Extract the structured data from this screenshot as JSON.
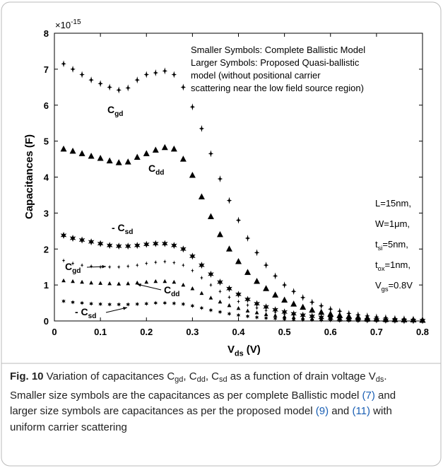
{
  "chart_data": {
    "type": "scatter",
    "y_label": "Capacitances (F)",
    "x_label": {
      "text": "V",
      "sub": "ds",
      "suffix": " (V)"
    },
    "y_multiplier": {
      "base": "×10",
      "exponent": "-15"
    },
    "xlim": [
      0,
      0.8
    ],
    "xticks": [
      0,
      0.1,
      0.2,
      0.3,
      0.4,
      0.5,
      0.6,
      0.7,
      0.8
    ],
    "ylim": [
      0,
      8
    ],
    "yticks": [
      0,
      1,
      2,
      3,
      4,
      5,
      6,
      7,
      8
    ],
    "x": [
      0.02,
      0.04,
      0.06,
      0.08,
      0.1,
      0.12,
      0.14,
      0.16,
      0.18,
      0.2,
      0.22,
      0.24,
      0.26,
      0.28,
      0.3,
      0.32,
      0.34,
      0.36,
      0.38,
      0.4,
      0.42,
      0.44,
      0.46,
      0.48,
      0.5,
      0.52,
      0.54,
      0.56,
      0.58,
      0.6,
      0.62,
      0.64,
      0.66,
      0.68,
      0.7,
      0.72,
      0.74,
      0.76,
      0.78,
      0.8
    ],
    "series": [
      {
        "marker": "star4",
        "size": "large",
        "color": "#000000",
        "values": [
          7.15,
          7.0,
          6.85,
          6.7,
          6.6,
          6.5,
          6.42,
          6.48,
          6.7,
          6.85,
          6.9,
          6.95,
          6.85,
          6.5,
          5.95,
          5.35,
          4.65,
          3.95,
          3.35,
          2.8,
          2.3,
          1.9,
          1.55,
          1.25,
          1.0,
          0.82,
          0.65,
          0.52,
          0.42,
          0.33,
          0.27,
          0.21,
          0.17,
          0.14,
          0.11,
          0.09,
          0.07,
          0.06,
          0.05,
          0.04
        ]
      },
      {
        "marker": "triangle",
        "size": "large",
        "color": "#000000",
        "values": [
          4.78,
          4.72,
          4.65,
          4.58,
          4.52,
          4.45,
          4.4,
          4.42,
          4.55,
          4.65,
          4.75,
          4.82,
          4.78,
          4.5,
          4.05,
          3.45,
          2.9,
          2.4,
          2.0,
          1.65,
          1.35,
          1.1,
          0.9,
          0.72,
          0.58,
          0.47,
          0.38,
          0.3,
          0.24,
          0.19,
          0.15,
          0.12,
          0.1,
          0.08,
          0.06,
          0.05,
          0.04,
          0.03,
          0.03,
          0.02
        ]
      },
      {
        "marker": "asterisk",
        "size": "large",
        "color": "#000000",
        "values": [
          2.38,
          2.3,
          2.25,
          2.2,
          2.15,
          2.1,
          2.08,
          2.08,
          2.1,
          2.13,
          2.15,
          2.15,
          2.1,
          2.0,
          1.8,
          1.55,
          1.3,
          1.08,
          0.9,
          0.74,
          0.6,
          0.48,
          0.39,
          0.31,
          0.25,
          0.2,
          0.16,
          0.13,
          0.1,
          0.08,
          0.06,
          0.05,
          0.04,
          0.03,
          0.03,
          0.02,
          0.02,
          0.01,
          0.01,
          0.01
        ]
      },
      {
        "marker": "star4",
        "size": "small",
        "color": "#000000",
        "values": [
          1.68,
          1.6,
          1.55,
          1.52,
          1.5,
          1.5,
          1.5,
          1.52,
          1.55,
          1.6,
          1.63,
          1.65,
          1.62,
          1.55,
          1.4,
          1.2,
          1.0,
          0.82,
          0.66,
          0.54,
          0.44,
          0.36,
          0.29,
          0.24,
          0.19,
          0.16,
          0.13,
          0.1,
          0.08,
          0.07,
          0.06,
          0.05,
          0.04,
          0.03,
          0.03,
          0.02,
          0.02,
          0.02,
          0.01,
          0.01
        ]
      },
      {
        "marker": "triangle",
        "size": "small",
        "color": "#000000",
        "values": [
          1.12,
          1.1,
          1.08,
          1.06,
          1.05,
          1.04,
          1.03,
          1.04,
          1.06,
          1.08,
          1.1,
          1.1,
          1.08,
          1.0,
          0.9,
          0.77,
          0.64,
          0.53,
          0.43,
          0.35,
          0.28,
          0.23,
          0.18,
          0.15,
          0.12,
          0.1,
          0.08,
          0.06,
          0.05,
          0.04,
          0.03,
          0.03,
          0.02,
          0.02,
          0.02,
          0.01,
          0.01,
          0.01,
          0.01,
          0.01
        ]
      },
      {
        "marker": "asterisk",
        "size": "small",
        "color": "#000000",
        "values": [
          0.55,
          0.52,
          0.5,
          0.48,
          0.47,
          0.46,
          0.46,
          0.46,
          0.47,
          0.48,
          0.5,
          0.5,
          0.49,
          0.47,
          0.42,
          0.36,
          0.3,
          0.25,
          0.2,
          0.16,
          0.13,
          0.1,
          0.08,
          0.07,
          0.05,
          0.04,
          0.03,
          0.03,
          0.02,
          0.02,
          0.01,
          0.01,
          0.01,
          0.01,
          0.01,
          0,
          0,
          0,
          0,
          0
        ]
      }
    ],
    "annotations": [
      {
        "text": "C",
        "sub": "gd"
      },
      {
        "text": "C",
        "sub": "dd"
      },
      {
        "text": "- C",
        "sub": "sd"
      },
      {
        "text": "C",
        "sub": "gd"
      },
      {
        "text": "C",
        "sub": "dd"
      },
      {
        "text": "- C",
        "sub": "sd"
      }
    ],
    "note_lines": [
      "Smaller Symbols: Complete Ballistic Model",
      "Larger Symbols: Proposed Quasi-ballistic",
      "model (without positional carrier",
      "scattering near the low field source region)"
    ],
    "param_lines": [
      {
        "text": "L=15nm,"
      },
      {
        "text": "W=1μm,"
      },
      {
        "text": "t",
        "sub": "si",
        "suffix": "=5nm,"
      },
      {
        "text": "t",
        "sub": "ox",
        "suffix": "=1nm,"
      },
      {
        "text": "V",
        "sub": "gs",
        "suffix": "=0.8V"
      }
    ]
  },
  "caption": {
    "parts": [
      {
        "text": "Fig. 10",
        "style": "bold"
      },
      {
        "text": " Variation of capacitances C",
        "style": "plain"
      },
      {
        "text": "gd",
        "style": "sub"
      },
      {
        "text": ", C",
        "style": "plain"
      },
      {
        "text": "dd",
        "style": "sub"
      },
      {
        "text": ", C",
        "style": "plain"
      },
      {
        "text": "sd",
        "style": "sub"
      },
      {
        "text": " as a function of drain voltage V",
        "style": "plain"
      },
      {
        "text": "ds",
        "style": "sub"
      },
      {
        "text": ". Smaller size symbols are the capacitances as per complete Ballistic model ",
        "style": "plain"
      },
      {
        "text": "(7)",
        "style": "link"
      },
      {
        "text": " and larger size symbols are capacitances as per the proposed model ",
        "style": "plain"
      },
      {
        "text": "(9)",
        "style": "link"
      },
      {
        "text": " and ",
        "style": "plain"
      },
      {
        "text": "(11)",
        "style": "link"
      },
      {
        "text": " with uniform carrier scattering",
        "style": "plain"
      }
    ]
  }
}
